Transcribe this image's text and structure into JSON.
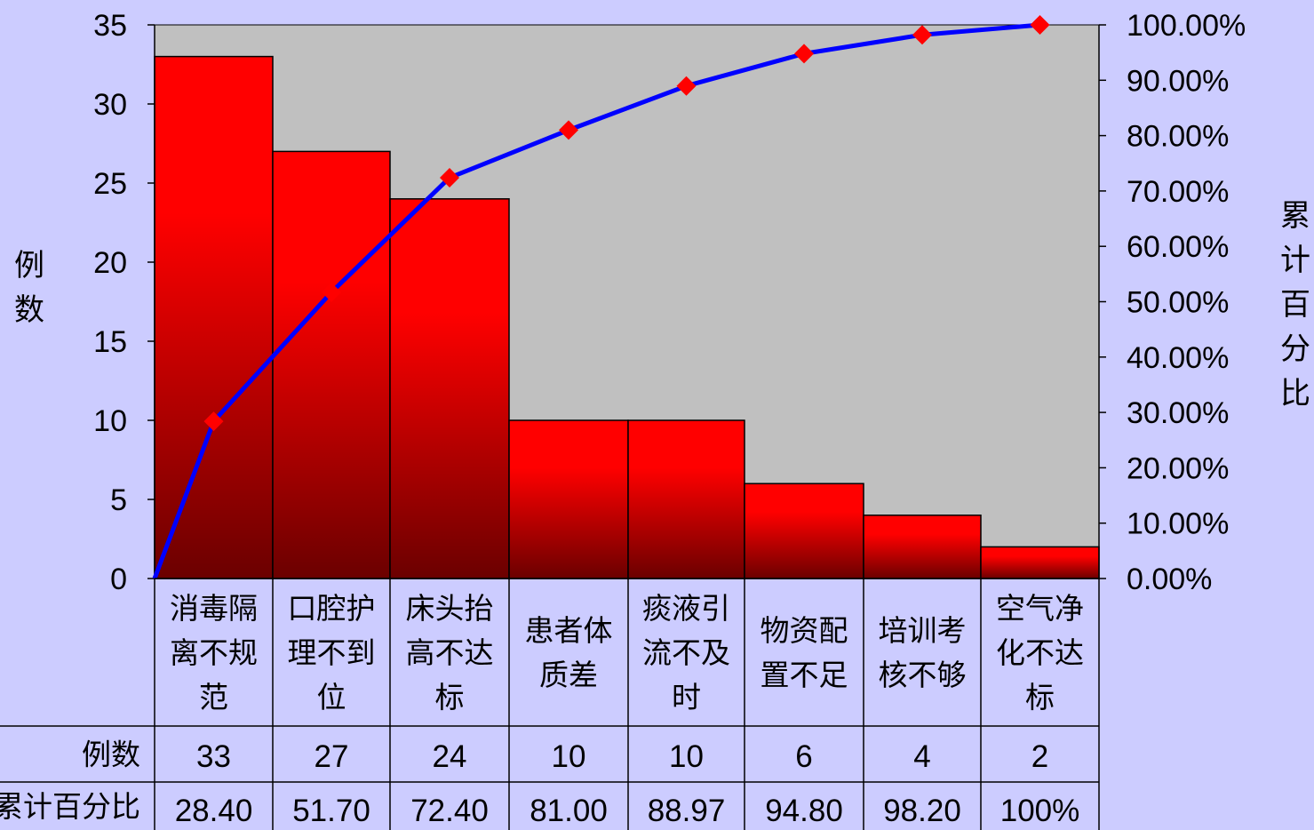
{
  "chart_data": {
    "type": "bar",
    "subtype": "pareto",
    "categories": [
      [
        "消毒隔",
        "离不规",
        "范"
      ],
      [
        "口腔护",
        "理不到",
        "位"
      ],
      [
        "床头抬",
        "高不达",
        "标"
      ],
      [
        "患者体",
        "质差"
      ],
      [
        "痰液引",
        "流不及",
        "时"
      ],
      [
        "物资配",
        "置不足"
      ],
      [
        "培训考",
        "核不够"
      ],
      [
        "空气净",
        "化不达",
        "标"
      ]
    ],
    "series": [
      {
        "name": "例数",
        "type": "bar",
        "axis": "left",
        "values": [
          33,
          27,
          24,
          10,
          10,
          6,
          4,
          2
        ]
      },
      {
        "name": "累计百分比",
        "type": "line",
        "axis": "right",
        "values": [
          28.4,
          51.7,
          72.4,
          81.0,
          88.97,
          94.8,
          98.2,
          100
        ]
      }
    ],
    "line_start": 0,
    "ylabel_left": "例数",
    "ylabel_right": "累计百分比",
    "ylim_left": [
      0,
      35
    ],
    "yticks_left": [
      "0",
      "5",
      "10",
      "15",
      "20",
      "25",
      "30",
      "35"
    ],
    "ylim_right": [
      0,
      100
    ],
    "yticks_right": [
      "0.00%",
      "10.00%",
      "20.00%",
      "30.00%",
      "40.00%",
      "50.00%",
      "60.00%",
      "70.00%",
      "80.00%",
      "90.00%",
      "100.00%"
    ],
    "table": {
      "row_headers": [
        "例数",
        "累计百分比"
      ],
      "rows": [
        [
          "33",
          "27",
          "24",
          "10",
          "10",
          "6",
          "4",
          "2"
        ],
        [
          "28.40",
          "51.70",
          "72.40",
          "81.00",
          "88.97",
          "94.80",
          "98.20",
          "100%"
        ]
      ]
    },
    "grid": false,
    "legend": "none",
    "colors": {
      "background": "#ccccff",
      "plot_area": "#c0c0c0",
      "bar_top": "#ff0000",
      "bar_bottom": "#6b0000",
      "line": "#0000ff",
      "marker": "#ff0000"
    }
  }
}
